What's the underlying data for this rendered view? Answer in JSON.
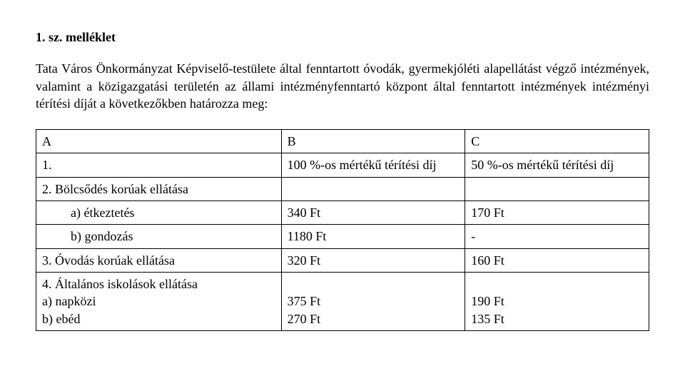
{
  "title": "1. sz. melléklet",
  "paragraph": "Tata Város Önkormányzat Képviselő-testülete által fenntartott óvodák, gyermekjóléti alapellátást végző intézmények, valamint a közigazgatási területén az állami intézményfenntartó központ által fenntartott intézmények intézményi térítési díját a következőkben határozza meg:",
  "table": {
    "header": {
      "a": "A",
      "b": "B",
      "c": "C"
    },
    "rows": [
      {
        "a": "1.",
        "b": "100 %-os mértékű térítési díj",
        "c": "50 %-os mértékű térítési díj"
      },
      {
        "a": "2. Bölcsődés korúak ellátása",
        "b": "",
        "c": ""
      },
      {
        "a": "a) étkeztetés",
        "indent": true,
        "b": "340 Ft",
        "c": "170 Ft"
      },
      {
        "a": "b) gondozás",
        "indent": true,
        "b": "1180 Ft",
        "c": "-"
      },
      {
        "a": "3. Óvodás korúak ellátása",
        "b": "320 Ft",
        "c": "160 Ft"
      },
      {
        "a": "4. Általános iskolások ellátása\na) napközi\nb) ebéd",
        "b": "\n375 Ft\n270 Ft",
        "c": "\n190 Ft\n135 Ft"
      }
    ]
  }
}
